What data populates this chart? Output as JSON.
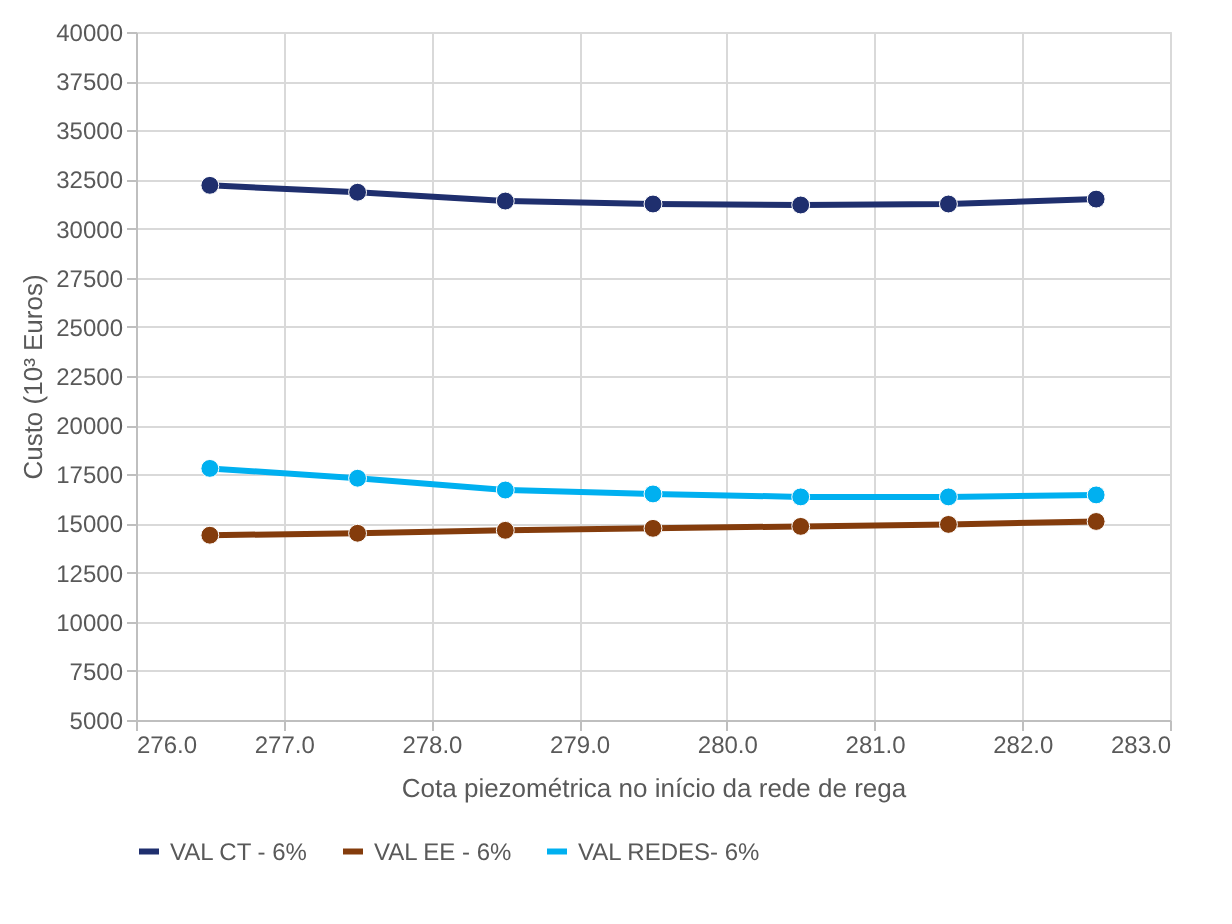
{
  "chart_data": {
    "type": "line",
    "xlabel": "Cota piezométrica no início da rede de rega",
    "ylabel": "Custo (10³ Euros)",
    "x": [
      276.5,
      277.5,
      278.5,
      279.5,
      280.5,
      281.5,
      282.5
    ],
    "series": [
      {
        "name": "VAL CT - 6%",
        "color": "#1f2f6e",
        "values": [
          32200,
          31850,
          31400,
          31250,
          31200,
          31250,
          31500
        ]
      },
      {
        "name": "VAL EE - 6%",
        "color": "#843c0c",
        "values": [
          14400,
          14500,
          14650,
          14750,
          14850,
          14950,
          15100
        ]
      },
      {
        "name": "VAL REDES- 6%",
        "color": "#00b0f0",
        "values": [
          17800,
          17300,
          16700,
          16500,
          16350,
          16350,
          16450
        ]
      }
    ],
    "xlim": [
      276.0,
      283.0
    ],
    "xticks": [
      {
        "value": 276,
        "label": "276.0"
      },
      {
        "value": 277,
        "label": "277.0"
      },
      {
        "value": 278,
        "label": "278.0"
      },
      {
        "value": 279,
        "label": "279.0"
      },
      {
        "value": 280,
        "label": "280.0"
      },
      {
        "value": 281,
        "label": "281.0"
      },
      {
        "value": 282,
        "label": "282.0"
      },
      {
        "value": 283,
        "label": "283.0"
      }
    ],
    "ylim": [
      5000,
      40000
    ],
    "yticks": [
      5000,
      7500,
      10000,
      12500,
      15000,
      17500,
      20000,
      22500,
      25000,
      27500,
      30000,
      32500,
      35000,
      37500,
      40000
    ],
    "grid": true,
    "legend": "bottom",
    "marker": "circle",
    "line_style": "solid"
  }
}
